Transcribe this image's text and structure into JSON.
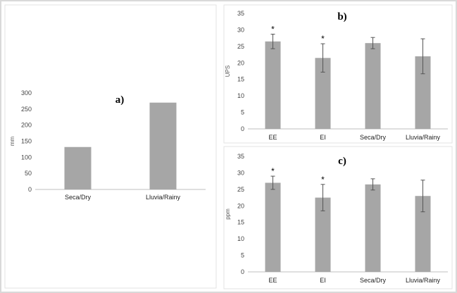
{
  "colors": {
    "bar": "#a6a6a6",
    "axis": "#bfbfbf",
    "error": "#555555",
    "frame": "#d9d9d9",
    "panel_border": "#dddddd"
  },
  "chart_data": [
    {
      "panel": "a",
      "type": "bar",
      "title": "a)",
      "ylabel": "mm",
      "categories": [
        "Seca/Dry",
        "Lluvia/Rainy"
      ],
      "values": [
        132,
        270
      ],
      "ylim": [
        0,
        300
      ],
      "yticks": [
        0,
        50,
        100,
        150,
        200,
        250,
        300
      ],
      "grid": false
    },
    {
      "panel": "b",
      "type": "bar",
      "title": "b)",
      "ylabel": "UPS",
      "categories": [
        "EE",
        "EI",
        "Seca/Dry",
        "Lluvia/Rainy"
      ],
      "values": [
        26.5,
        21.5,
        26,
        22
      ],
      "errors": [
        2.2,
        4.3,
        1.7,
        5.3
      ],
      "markers": [
        "*",
        "*",
        "",
        ""
      ],
      "ylim": [
        0,
        35
      ],
      "yticks": [
        0,
        5,
        10,
        15,
        20,
        25,
        30,
        35
      ],
      "grid": false
    },
    {
      "panel": "c",
      "type": "bar",
      "title": "c)",
      "ylabel": "ppm",
      "categories": [
        "EE",
        "EI",
        "Seca/Dry",
        "Lluvia/Rainy"
      ],
      "values": [
        27,
        22.5,
        26.5,
        23
      ],
      "errors": [
        2,
        4,
        1.7,
        4.8
      ],
      "markers": [
        "*",
        "*",
        "",
        ""
      ],
      "ylim": [
        0,
        35
      ],
      "yticks": [
        0,
        5,
        10,
        15,
        20,
        25,
        30,
        35
      ],
      "grid": false
    }
  ]
}
